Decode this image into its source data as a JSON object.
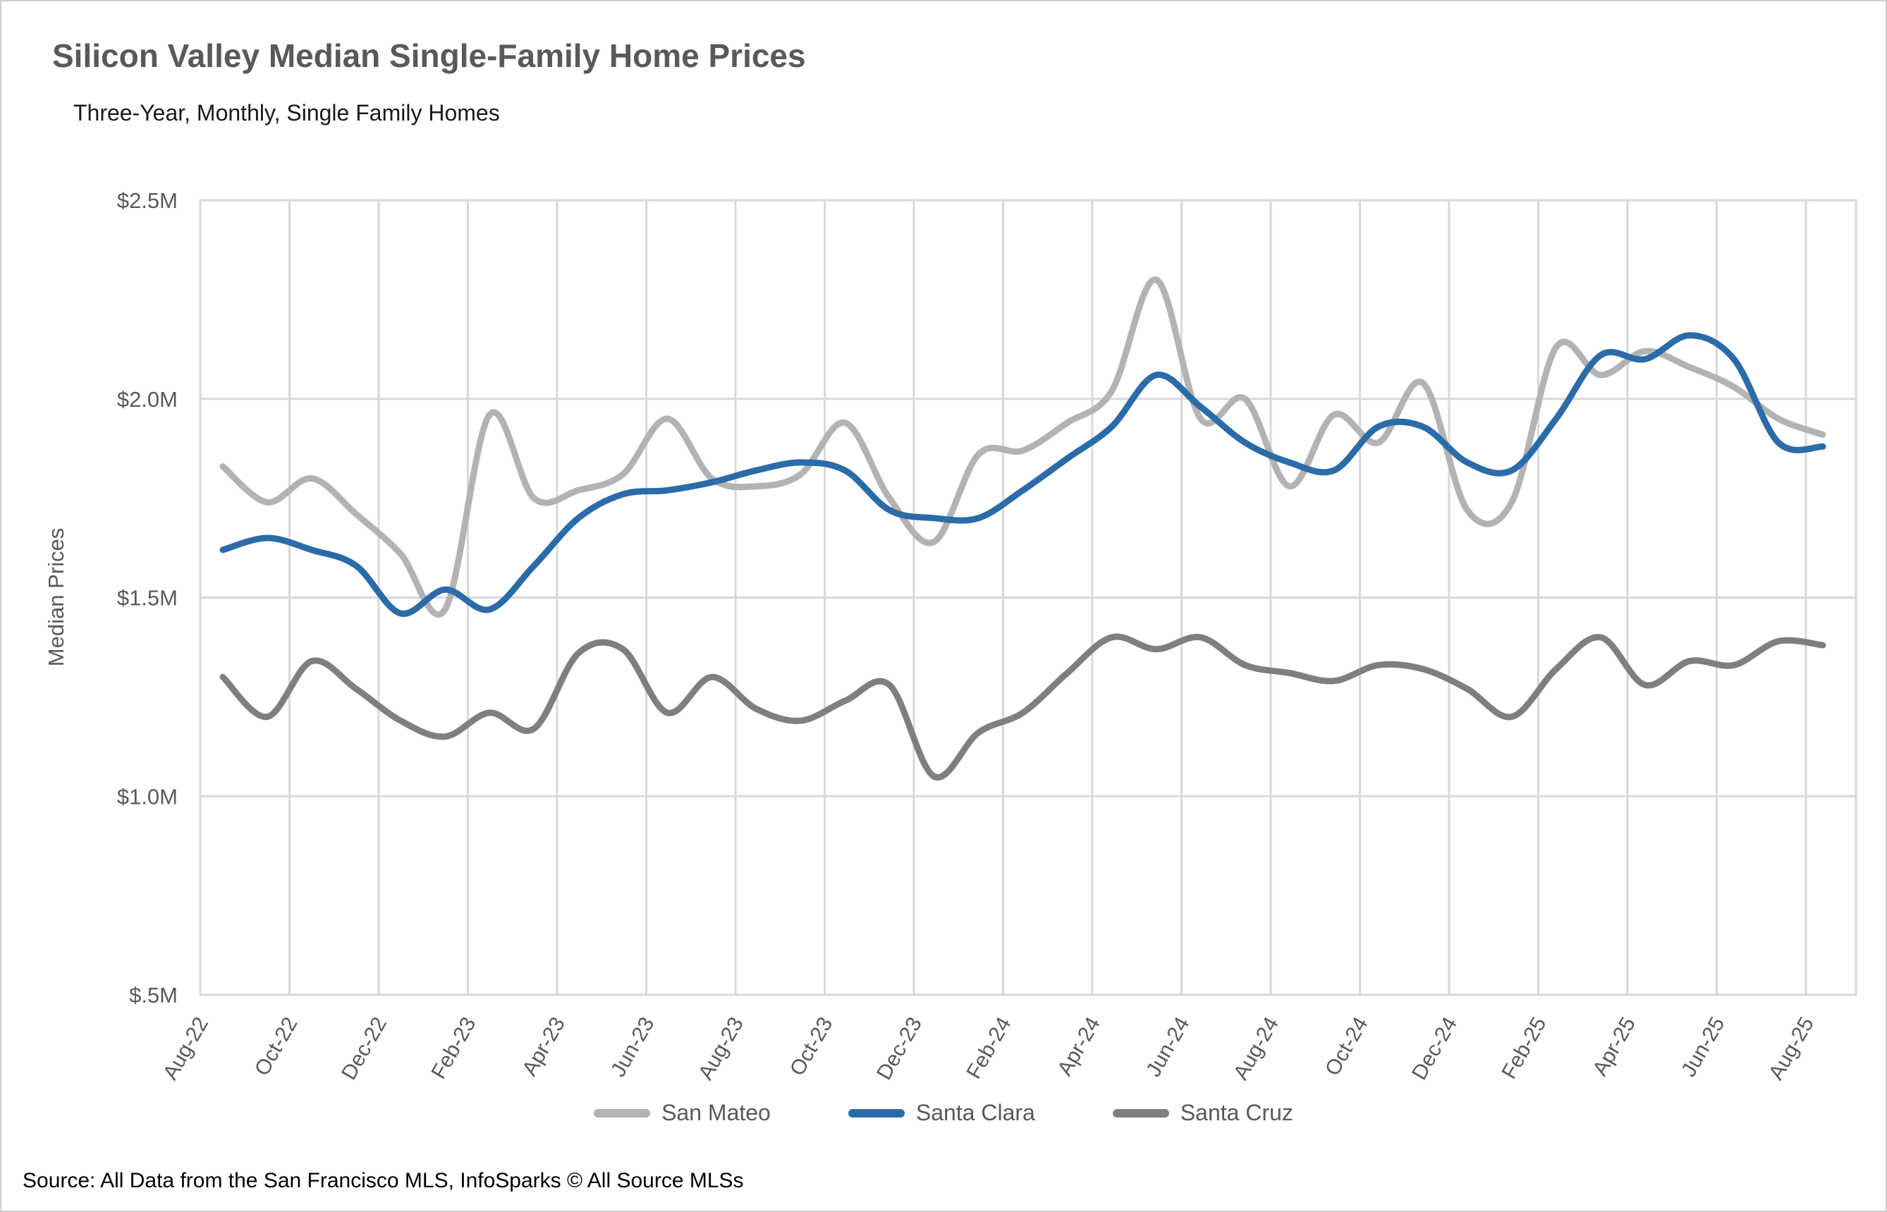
{
  "header": {
    "title": "Silicon Valley Median Single-Family Home Prices",
    "subtitle": "Three-Year, Monthly, Single Family Homes"
  },
  "source_text": "Source: All Data from the San Francisco MLS, InfoSparks © All Source MLSs",
  "colors": {
    "san_mateo": "#B3B3B3",
    "santa_clara": "#2B6BA8",
    "santa_cruz": "#7F7F7F",
    "grid": "#D9D9D9",
    "axis_text": "#595959",
    "title_text": "#595959"
  },
  "chart_data": {
    "type": "line",
    "title": "Silicon Valley Median Single-Family Home Prices",
    "xlabel": "",
    "ylabel": "Median Prices",
    "ylim": [
      0.5,
      2.5
    ],
    "grid": true,
    "legend_position": "bottom",
    "smooth": true,
    "y_ticks": [
      {
        "value": 2.5,
        "label": "$2.5M"
      },
      {
        "value": 2.0,
        "label": "$2.0M"
      },
      {
        "value": 1.5,
        "label": "$1.5M"
      },
      {
        "value": 1.0,
        "label": "$1.0M"
      },
      {
        "value": 0.5,
        "label": "$.5M"
      }
    ],
    "x": [
      "Aug-22",
      "Sep-22",
      "Oct-22",
      "Nov-22",
      "Dec-22",
      "Jan-23",
      "Feb-23",
      "Mar-23",
      "Apr-23",
      "May-23",
      "Jun-23",
      "Jul-23",
      "Aug-23",
      "Sep-23",
      "Oct-23",
      "Nov-23",
      "Dec-23",
      "Jan-24",
      "Feb-24",
      "Mar-24",
      "Apr-24",
      "May-24",
      "Jun-24",
      "Jul-24",
      "Aug-24",
      "Sep-24",
      "Oct-24",
      "Nov-24",
      "Dec-24",
      "Jan-25",
      "Feb-25",
      "Mar-25",
      "Apr-25",
      "May-25",
      "Jun-25",
      "Jul-25",
      "Aug-25"
    ],
    "x_tick_every": 2,
    "units": "millions USD",
    "series": [
      {
        "name": "San Mateo",
        "values": [
          1.83,
          1.74,
          1.8,
          1.71,
          1.61,
          1.47,
          1.96,
          1.75,
          1.77,
          1.81,
          1.95,
          1.8,
          1.78,
          1.81,
          1.94,
          1.75,
          1.64,
          1.86,
          1.87,
          1.94,
          2.02,
          2.3,
          1.95,
          2.0,
          1.78,
          1.96,
          1.89,
          2.04,
          1.72,
          1.74,
          2.13,
          2.06,
          2.12,
          2.08,
          2.03,
          1.95,
          1.91
        ]
      },
      {
        "name": "Santa Clara",
        "values": [
          1.62,
          1.65,
          1.62,
          1.58,
          1.46,
          1.52,
          1.47,
          1.58,
          1.7,
          1.76,
          1.77,
          1.79,
          1.82,
          1.84,
          1.82,
          1.72,
          1.7,
          1.7,
          1.77,
          1.85,
          1.93,
          2.06,
          1.98,
          1.89,
          1.84,
          1.82,
          1.93,
          1.93,
          1.84,
          1.82,
          1.95,
          2.11,
          2.1,
          2.16,
          2.1,
          1.89,
          1.88
        ]
      },
      {
        "name": "Santa Cruz",
        "values": [
          1.3,
          1.2,
          1.34,
          1.27,
          1.19,
          1.15,
          1.21,
          1.17,
          1.36,
          1.37,
          1.21,
          1.3,
          1.22,
          1.19,
          1.24,
          1.28,
          1.05,
          1.16,
          1.21,
          1.31,
          1.4,
          1.37,
          1.4,
          1.33,
          1.31,
          1.29,
          1.33,
          1.32,
          1.27,
          1.2,
          1.32,
          1.4,
          1.28,
          1.34,
          1.33,
          1.39,
          1.38
        ]
      }
    ]
  }
}
